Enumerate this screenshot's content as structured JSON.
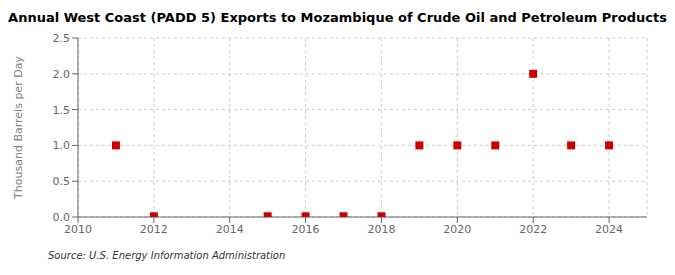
{
  "chart_data": {
    "type": "scatter",
    "title": "Annual West Coast (PADD 5) Exports to Mozambique of Crude Oil and Petroleum Products",
    "ylabel": "Thousand Barrels per Day",
    "source": "Source: U.S. Energy Information Administration",
    "x": [
      2011,
      2012,
      2015,
      2016,
      2017,
      2018,
      2019,
      2020,
      2021,
      2022,
      2023,
      2024
    ],
    "values": [
      1.0,
      0.01,
      0.01,
      0.01,
      0.01,
      0.01,
      1.0,
      1.0,
      1.0,
      2.0,
      1.0,
      1.0
    ],
    "color": "#cc0000",
    "marker": "square",
    "xlim": [
      2010,
      2025
    ],
    "xticks": [
      2010,
      2012,
      2014,
      2016,
      2018,
      2020,
      2022,
      2024
    ],
    "ylim": [
      0.0,
      2.5
    ],
    "yticks": [
      {
        "value": 0.0,
        "label": "0.0"
      },
      0.5,
      {
        "value": 1.0,
        "label": "1.0"
      },
      1.5,
      {
        "value": 2.0,
        "label": "2.0"
      },
      2.5
    ],
    "grid": true
  }
}
